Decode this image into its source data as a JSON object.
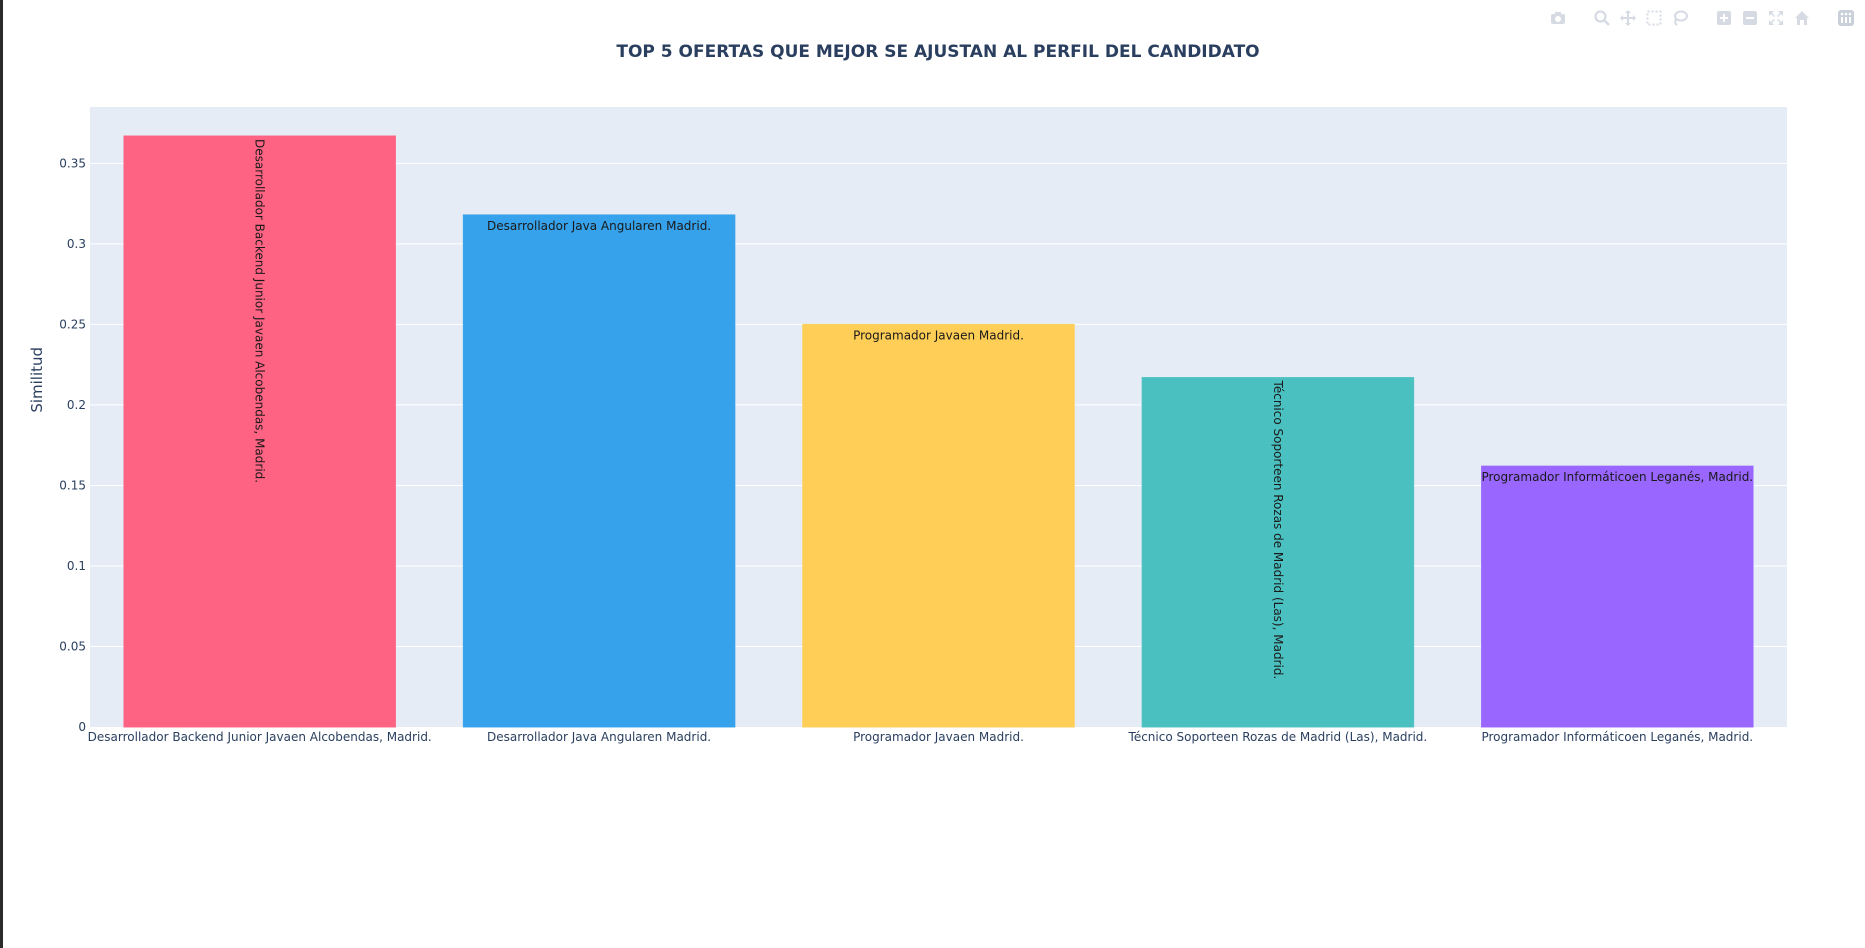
{
  "chart_data": {
    "type": "bar",
    "title": "TOP 5 OFERTAS QUE MEJOR SE AJUSTAN AL PERFIL DEL CANDIDATO",
    "ylabel": "Similitud",
    "xlabel": "",
    "ylim": [
      0,
      0.385
    ],
    "yticks": [
      0,
      0.05,
      0.1,
      0.15,
      0.2,
      0.25,
      0.3,
      0.35
    ],
    "ytick_labels": [
      "0",
      "0.05",
      "0.1",
      "0.15",
      "0.2",
      "0.25",
      "0.3",
      "0.35"
    ],
    "categories": [
      "Desarrollador Backend Junior Javaen Alcobendas, Madrid.",
      "Desarrollador Java Angularen Madrid.",
      "Programador Javaen Madrid.",
      "Técnico Soporteen Rozas de Madrid (Las), Madrid.",
      "Programador Informáticoen Leganés, Madrid."
    ],
    "values": [
      0.367,
      0.318,
      0.25,
      0.217,
      0.162
    ],
    "bar_labels": [
      "Desarrollador Backend Junior Javaen Alcobendas, Madrid.",
      "Desarrollador Java Angularen Madrid.",
      "Programador Javaen Madrid.",
      "Técnico Soporteen Rozas de Madrid (Las), Madrid.",
      "Programador Informáticoen Leganés, Madrid."
    ],
    "label_orientation": [
      "vertical",
      "horizontal",
      "horizontal",
      "vertical",
      "horizontal"
    ],
    "colors": [
      "#FF6384",
      "#36A2EB",
      "#FFCE56",
      "#4BC0C0",
      "#9966FF"
    ],
    "grid": true,
    "legend": "none"
  },
  "modebar": {
    "icons": [
      "camera-icon",
      "zoom-icon",
      "pan-icon",
      "box-select-icon",
      "lasso-icon",
      "zoom-in-icon",
      "zoom-out-icon",
      "autoscale-icon",
      "home-icon",
      "plotly-logo-icon"
    ]
  }
}
